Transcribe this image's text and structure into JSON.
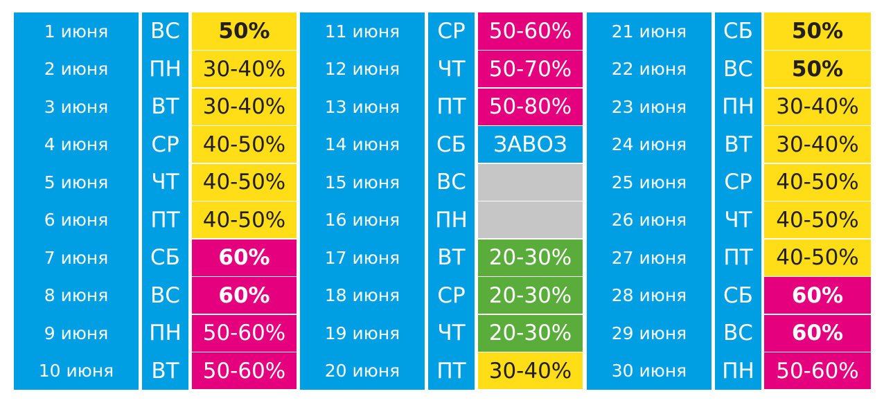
{
  "blocks": [
    {
      "rows": [
        {
          "date": "1 июня",
          "day": "ВС",
          "discount": "50%",
          "color": "#ffde17",
          "tone": "yellow",
          "bold": true
        },
        {
          "date": "2 июня",
          "day": "ПН",
          "discount": "30-40%",
          "color": "#ffde17",
          "tone": "yellow",
          "bold": false
        },
        {
          "date": "3 июня",
          "day": "ВТ",
          "discount": "30-40%",
          "color": "#ffde17",
          "tone": "yellow",
          "bold": false
        },
        {
          "date": "4 июня",
          "day": "СР",
          "discount": "40-50%",
          "color": "#ffde17",
          "tone": "yellow",
          "bold": false
        },
        {
          "date": "5 июня",
          "day": "ЧТ",
          "discount": "40-50%",
          "color": "#ffde17",
          "tone": "yellow",
          "bold": false
        },
        {
          "date": "6 июня",
          "day": "ПТ",
          "discount": "40-50%",
          "color": "#ffde17",
          "tone": "yellow",
          "bold": false
        },
        {
          "date": "7 июня",
          "day": "СБ",
          "discount": "60%",
          "color": "#e5007e",
          "tone": "pink",
          "bold": true
        },
        {
          "date": "8 июня",
          "day": "ВС",
          "discount": "60%",
          "color": "#e5007e",
          "tone": "pink",
          "bold": true
        },
        {
          "date": "9 июня",
          "day": "ПН",
          "discount": "50-60%",
          "color": "#e5007e",
          "tone": "pink",
          "bold": false
        },
        {
          "date": "10 июня",
          "day": "ВТ",
          "discount": "50-60%",
          "color": "#e5007e",
          "tone": "pink",
          "bold": false
        }
      ]
    },
    {
      "rows": [
        {
          "date": "11 июня",
          "day": "СР",
          "discount": "50-60%",
          "color": "#e5007e",
          "tone": "pink",
          "bold": false
        },
        {
          "date": "12 июня",
          "day": "ЧТ",
          "discount": "50-70%",
          "color": "#e5007e",
          "tone": "pink",
          "bold": false
        },
        {
          "date": "13 июня",
          "day": "ПТ",
          "discount": "50-80%",
          "color": "#e5007e",
          "tone": "pink",
          "bold": false
        },
        {
          "date": "14 июня",
          "day": "СБ",
          "discount": "ЗАВОЗ",
          "color": "#009fe3",
          "tone": "blue",
          "bold": false
        },
        {
          "date": "15 июня",
          "day": "ВС",
          "discount": "",
          "color": "#c6c6c6",
          "tone": "gray",
          "bold": false
        },
        {
          "date": "16 июня",
          "day": "ПН",
          "discount": "",
          "color": "#c6c6c6",
          "tone": "gray",
          "bold": false
        },
        {
          "date": "17 июня",
          "day": "ВТ",
          "discount": "20-30%",
          "color": "#5aad3a",
          "tone": "green",
          "bold": false
        },
        {
          "date": "18 июня",
          "day": "СР",
          "discount": "20-30%",
          "color": "#5aad3a",
          "tone": "green",
          "bold": false
        },
        {
          "date": "19 июня",
          "day": "ЧТ",
          "discount": "20-30%",
          "color": "#5aad3a",
          "tone": "green",
          "bold": false
        },
        {
          "date": "20 июня",
          "day": "ПТ",
          "discount": "30-40%",
          "color": "#ffde17",
          "tone": "yellow",
          "bold": false
        }
      ]
    },
    {
      "rows": [
        {
          "date": "21 июня",
          "day": "СБ",
          "discount": "50%",
          "color": "#ffde17",
          "tone": "yellow",
          "bold": true
        },
        {
          "date": "22 июня",
          "day": "ВС",
          "discount": "50%",
          "color": "#ffde17",
          "tone": "yellow",
          "bold": true
        },
        {
          "date": "23 июня",
          "day": "ПН",
          "discount": "30-40%",
          "color": "#ffde17",
          "tone": "yellow",
          "bold": false
        },
        {
          "date": "24 июня",
          "day": "ВТ",
          "discount": "30-40%",
          "color": "#ffde17",
          "tone": "yellow",
          "bold": false
        },
        {
          "date": "25 июня",
          "day": "СР",
          "discount": "40-50%",
          "color": "#ffde17",
          "tone": "yellow",
          "bold": false
        },
        {
          "date": "26 июня",
          "day": "ЧТ",
          "discount": "40-50%",
          "color": "#ffde17",
          "tone": "yellow",
          "bold": false
        },
        {
          "date": "27 июня",
          "day": "ПТ",
          "discount": "40-50%",
          "color": "#ffde17",
          "tone": "yellow",
          "bold": false
        },
        {
          "date": "28 июня",
          "day": "СБ",
          "discount": "60%",
          "color": "#e5007e",
          "tone": "pink",
          "bold": true
        },
        {
          "date": "29 июня",
          "day": "ВС",
          "discount": "60%",
          "color": "#e5007e",
          "tone": "pink",
          "bold": true
        },
        {
          "date": "30 июня",
          "day": "ПН",
          "discount": "50-60%",
          "color": "#e5007e",
          "tone": "pink",
          "bold": false
        }
      ]
    }
  ]
}
